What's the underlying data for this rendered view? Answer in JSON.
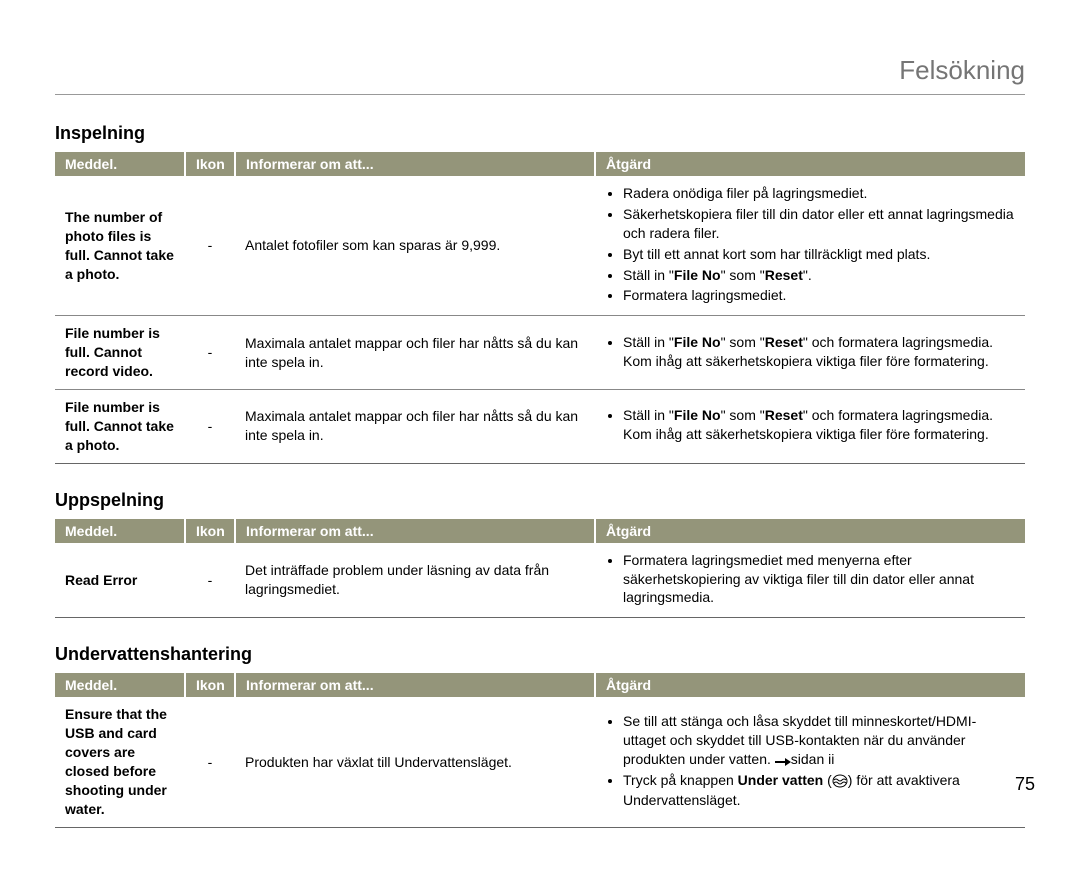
{
  "page_title": "Felsökning",
  "page_number": "75",
  "colors": {
    "header_bg": "#94957a",
    "header_text": "#ffffff",
    "rule": "#888888",
    "title_text": "#757575"
  },
  "column_headers": {
    "meddel": "Meddel.",
    "ikon": "Ikon",
    "info": "Informerar om att...",
    "atgard": "Åtgärd"
  },
  "sections": [
    {
      "heading": "Inspelning",
      "rows": [
        {
          "message": "The number of photo files is full. Cannot take a photo.",
          "ikon": "-",
          "info": "Antalet fotofiler som kan sparas är 9,999.",
          "actions": [
            [
              {
                "t": "Radera onödiga filer på lagringsmediet."
              }
            ],
            [
              {
                "t": "Säkerhetskopiera filer till din dator eller ett annat lagringsmedia och radera filer."
              }
            ],
            [
              {
                "t": "Byt till ett annat kort som har tillräckligt med plats."
              }
            ],
            [
              {
                "t": "Ställ in \""
              },
              {
                "t": "File No",
                "b": true
              },
              {
                "t": "\" som \""
              },
              {
                "t": "Reset",
                "b": true
              },
              {
                "t": "\"."
              }
            ],
            [
              {
                "t": "Formatera lagringsmediet."
              }
            ]
          ]
        },
        {
          "message": "File number is full. Cannot record video.",
          "ikon": "-",
          "info": "Maximala antalet mappar och filer har nåtts så du kan inte spela in.",
          "actions": [
            [
              {
                "t": "Ställ in \""
              },
              {
                "t": "File No",
                "b": true
              },
              {
                "t": "\" som \""
              },
              {
                "t": "Reset",
                "b": true
              },
              {
                "t": "\" och formatera lagringsmedia. Kom ihåg att säkerhetskopiera viktiga filer före formatering."
              }
            ]
          ]
        },
        {
          "message": "File number is full. Cannot take a photo.",
          "ikon": "-",
          "info": "Maximala antalet mappar och filer har nåtts så du kan inte spela in.",
          "actions": [
            [
              {
                "t": "Ställ in \""
              },
              {
                "t": "File No",
                "b": true
              },
              {
                "t": "\" som \""
              },
              {
                "t": "Reset",
                "b": true
              },
              {
                "t": "\" och formatera lagringsmedia. Kom ihåg att säkerhetskopiera viktiga filer före formatering."
              }
            ]
          ]
        }
      ]
    },
    {
      "heading": "Uppspelning",
      "rows": [
        {
          "message": "Read Error",
          "ikon": "-",
          "info": "Det inträffade problem under läsning av data från lagringsmediet.",
          "actions": [
            [
              {
                "t": "Formatera lagringsmediet med menyerna efter säkerhetskopiering av viktiga filer till din dator eller annat lagringsmedia."
              }
            ]
          ]
        }
      ]
    },
    {
      "heading": "Undervattenshantering",
      "rows": [
        {
          "message": "Ensure that the USB and card covers are closed before shooting under water.",
          "ikon": "-",
          "info": "Produkten har växlat till Undervattensläget.",
          "actions": [
            [
              {
                "t": "Se till att stänga och låsa skyddet till minneskortet/HDMI-uttaget och skyddet till USB-kontakten när du använder produkten under vatten. "
              },
              {
                "icon": "arrow"
              },
              {
                "t": "sidan ii"
              }
            ],
            [
              {
                "t": "Tryck på knappen "
              },
              {
                "t": "Under vatten",
                "b": true
              },
              {
                "t": " ("
              },
              {
                "icon": "water"
              },
              {
                "t": ") för att avaktivera Undervattensläget."
              }
            ]
          ]
        }
      ]
    }
  ]
}
